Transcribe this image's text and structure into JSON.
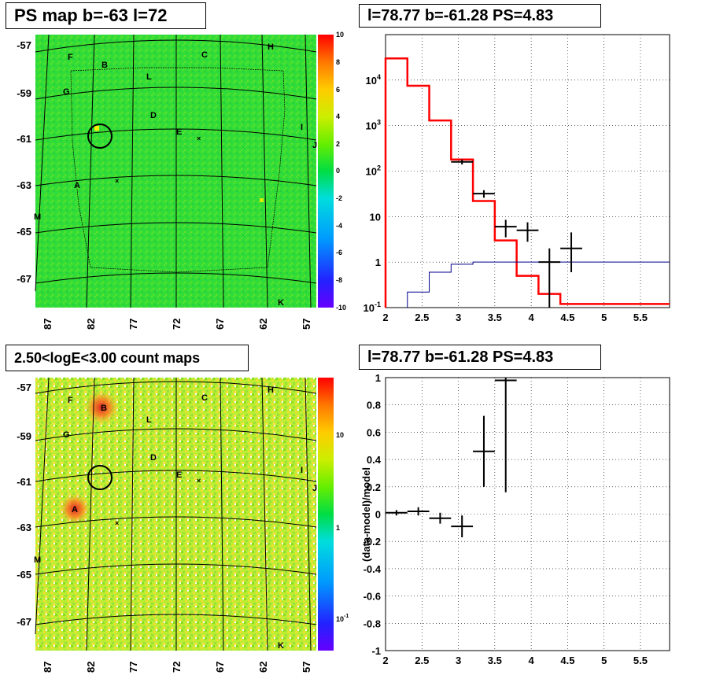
{
  "panels": {
    "tl_title": "PS map b=-63 l=72",
    "tr_title": "l=78.77 b=-61.28 PS=4.83",
    "bl_title": "2.50<logE<3.00 count maps",
    "br_title": "l=78.77 b=-61.28 PS=4.83"
  },
  "map": {
    "y_ticks": [
      "-57",
      "-59",
      "-61",
      "-63",
      "-65",
      "-67"
    ],
    "x_ticks": [
      "87",
      "82",
      "77",
      "72",
      "67",
      "62",
      "57"
    ],
    "sources": [
      "A",
      "B",
      "C",
      "D",
      "E",
      "F",
      "G",
      "H",
      "I",
      "J",
      "K",
      "L",
      "M"
    ],
    "colors": {
      "background_ps": "#33dd33",
      "background_counts": "#bbee33"
    }
  },
  "colorbar_ps": {
    "ticks": [
      "10",
      "8",
      "6",
      "4",
      "2",
      "0",
      "-2",
      "-4",
      "-6",
      "-8",
      "-10"
    ],
    "range": [
      -10,
      10
    ]
  },
  "colorbar_counts": {
    "ticks": [
      "10",
      "1",
      "10"
    ],
    "tick_sup": "-1",
    "scale": "log"
  },
  "chart_data": [
    {
      "type": "line",
      "title": "l=78.77 b=-61.28 PS=4.83",
      "xlim": [
        2,
        5.9
      ],
      "ylim": [
        0.1,
        100000
      ],
      "yscale": "log",
      "x_ticks": [
        "2",
        "2.5",
        "3",
        "3.5",
        "4",
        "4.5",
        "5",
        "5.5"
      ],
      "y_ticks": [
        "10^4",
        "10^3",
        "10^2",
        "10",
        "1",
        "10^-1"
      ],
      "grid": true,
      "series": [
        {
          "style": "step",
          "color": "#ff0000",
          "x": [
            2,
            2.3,
            2.6,
            2.9,
            3.2,
            3.5,
            3.8,
            4.1,
            4.4,
            5.9
          ],
          "values": [
            30000,
            7500,
            1300,
            180,
            22,
            3,
            0.5,
            0.2,
            0.12,
            0.12
          ]
        },
        {
          "style": "step",
          "color": "#00008b",
          "x": [
            2.3,
            2.6,
            2.9,
            3.2,
            3.5,
            5.9
          ],
          "values": [
            0.22,
            0.6,
            0.9,
            1.0,
            1.0,
            1.0
          ]
        },
        {
          "style": "errorbars",
          "color": "#000000",
          "x": [
            3.05,
            3.35,
            3.65,
            3.95,
            4.25,
            4.55
          ],
          "values": [
            160,
            32,
            6,
            5,
            1,
            2
          ],
          "xerr": 0.15,
          "ylow": [
            140,
            26,
            3.5,
            2.8,
            0.1,
            0.6
          ],
          "yhigh": [
            180,
            38,
            8.5,
            7.5,
            2,
            4.5
          ]
        }
      ]
    },
    {
      "type": "scatter",
      "title": "l=78.77 b=-61.28 PS=4.83",
      "ylabel": "(data-model)/model",
      "xlim": [
        2,
        5.9
      ],
      "ylim": [
        -1,
        1
      ],
      "x_ticks": [
        "2",
        "2.5",
        "3",
        "3.5",
        "4",
        "4.5",
        "5",
        "5.5"
      ],
      "y_ticks": [
        "1",
        "0.8",
        "0.6",
        "0.4",
        "0.2",
        "0",
        "-0.2",
        "-0.4",
        "-0.6",
        "-0.8",
        "-1"
      ],
      "grid": true,
      "series": [
        {
          "style": "errorbars",
          "color": "#000000",
          "x": [
            2.15,
            2.45,
            2.75,
            3.05,
            3.35,
            3.65
          ],
          "values": [
            0.01,
            0.02,
            -0.03,
            -0.09,
            0.46,
            0.98
          ],
          "xerr": 0.15,
          "yerr": [
            0.02,
            0.03,
            0.04,
            0.08,
            0.26,
            0.82
          ]
        }
      ]
    }
  ]
}
